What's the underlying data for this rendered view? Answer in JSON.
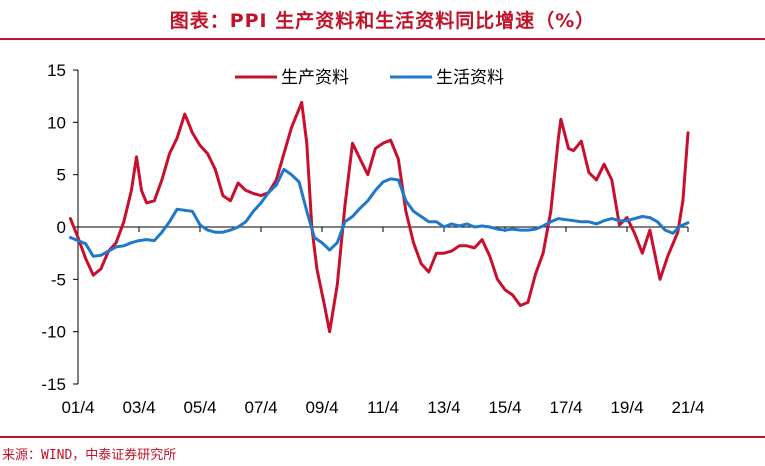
{
  "title": "图表：PPI 生产资料和生活资料同比增速（%）",
  "source": "来源：WIND，中泰证券研究所",
  "colors": {
    "accent": "#c0142a",
    "series1": "#c8102e",
    "series2": "#1f78c8"
  },
  "chart_data": {
    "type": "line",
    "title": "图表：PPI 生产资料和生活资料同比增速（%）",
    "xlabel": "",
    "ylabel": "",
    "ylim": [
      -15,
      15
    ],
    "yticks": [
      "15",
      "10",
      "5",
      "0",
      "-5",
      "-10",
      "-15"
    ],
    "xticks": [
      "01/4",
      "03/4",
      "05/4",
      "07/4",
      "09/4",
      "11/4",
      "13/4",
      "15/4",
      "17/4",
      "19/4",
      "21/4"
    ],
    "legend_position": "top",
    "grid": false,
    "series": [
      {
        "name": "生产资料",
        "points": [
          [
            "2001-01",
            0.8
          ],
          [
            "2001-04",
            -1.0
          ],
          [
            "2001-07",
            -3.0
          ],
          [
            "2001-10",
            -4.6
          ],
          [
            "2002-01",
            -4.0
          ],
          [
            "2002-04",
            -2.3
          ],
          [
            "2002-07",
            -1.5
          ],
          [
            "2002-10",
            0.5
          ],
          [
            "2003-01",
            3.5
          ],
          [
            "2003-03",
            6.7
          ],
          [
            "2003-05",
            3.5
          ],
          [
            "2003-07",
            2.3
          ],
          [
            "2003-10",
            2.5
          ],
          [
            "2004-01",
            4.5
          ],
          [
            "2004-04",
            7.0
          ],
          [
            "2004-07",
            8.5
          ],
          [
            "2004-10",
            10.8
          ],
          [
            "2005-01",
            9.0
          ],
          [
            "2005-04",
            7.8
          ],
          [
            "2005-07",
            7.0
          ],
          [
            "2005-10",
            5.5
          ],
          [
            "2006-01",
            3.0
          ],
          [
            "2006-04",
            2.5
          ],
          [
            "2006-07",
            4.2
          ],
          [
            "2006-10",
            3.5
          ],
          [
            "2007-01",
            3.2
          ],
          [
            "2007-04",
            3.0
          ],
          [
            "2007-07",
            3.3
          ],
          [
            "2007-10",
            4.5
          ],
          [
            "2008-01",
            7.0
          ],
          [
            "2008-04",
            9.5
          ],
          [
            "2008-08",
            11.9
          ],
          [
            "2008-10",
            8.0
          ],
          [
            "2008-12",
            0.0
          ],
          [
            "2009-02",
            -4.0
          ],
          [
            "2009-05",
            -7.5
          ],
          [
            "2009-07",
            -10.0
          ],
          [
            "2009-10",
            -5.5
          ],
          [
            "2010-01",
            2.0
          ],
          [
            "2010-04",
            8.0
          ],
          [
            "2010-07",
            6.5
          ],
          [
            "2010-10",
            5.0
          ],
          [
            "2011-01",
            7.5
          ],
          [
            "2011-04",
            8.0
          ],
          [
            "2011-07",
            8.3
          ],
          [
            "2011-10",
            6.5
          ],
          [
            "2012-01",
            1.5
          ],
          [
            "2012-04",
            -1.5
          ],
          [
            "2012-07",
            -3.5
          ],
          [
            "2012-10",
            -4.3
          ],
          [
            "2013-01",
            -2.5
          ],
          [
            "2013-04",
            -2.5
          ],
          [
            "2013-07",
            -2.3
          ],
          [
            "2013-10",
            -1.8
          ],
          [
            "2014-01",
            -1.8
          ],
          [
            "2014-04",
            -2.0
          ],
          [
            "2014-07",
            -1.2
          ],
          [
            "2014-10",
            -2.8
          ],
          [
            "2015-01",
            -5.0
          ],
          [
            "2015-04",
            -6.0
          ],
          [
            "2015-07",
            -6.5
          ],
          [
            "2015-10",
            -7.5
          ],
          [
            "2016-01",
            -7.2
          ],
          [
            "2016-04",
            -4.5
          ],
          [
            "2016-07",
            -2.5
          ],
          [
            "2016-10",
            1.5
          ],
          [
            "2017-01",
            8.5
          ],
          [
            "2017-02",
            10.3
          ],
          [
            "2017-05",
            7.5
          ],
          [
            "2017-07",
            7.3
          ],
          [
            "2017-10",
            8.2
          ],
          [
            "2018-01",
            5.2
          ],
          [
            "2018-04",
            4.5
          ],
          [
            "2018-07",
            6.0
          ],
          [
            "2018-10",
            4.5
          ],
          [
            "2019-01",
            0.2
          ],
          [
            "2019-04",
            0.9
          ],
          [
            "2019-07",
            -0.6
          ],
          [
            "2019-10",
            -2.5
          ],
          [
            "2020-01",
            -0.3
          ],
          [
            "2020-05",
            -5.0
          ],
          [
            "2020-08",
            -2.8
          ],
          [
            "2020-12",
            -0.5
          ],
          [
            "2021-02",
            2.5
          ],
          [
            "2021-04",
            9.0
          ]
        ]
      },
      {
        "name": "生活资料",
        "points": [
          [
            "2001-01",
            -1.0
          ],
          [
            "2001-04",
            -1.3
          ],
          [
            "2001-07",
            -1.6
          ],
          [
            "2001-10",
            -2.8
          ],
          [
            "2002-01",
            -2.7
          ],
          [
            "2002-04",
            -2.3
          ],
          [
            "2002-07",
            -1.9
          ],
          [
            "2002-10",
            -1.8
          ],
          [
            "2003-01",
            -1.5
          ],
          [
            "2003-04",
            -1.3
          ],
          [
            "2003-07",
            -1.2
          ],
          [
            "2003-10",
            -1.3
          ],
          [
            "2004-01",
            -0.5
          ],
          [
            "2004-04",
            0.5
          ],
          [
            "2004-07",
            1.7
          ],
          [
            "2004-10",
            1.6
          ],
          [
            "2005-01",
            1.5
          ],
          [
            "2005-04",
            0.2
          ],
          [
            "2005-07",
            -0.3
          ],
          [
            "2005-10",
            -0.5
          ],
          [
            "2006-01",
            -0.5
          ],
          [
            "2006-04",
            -0.3
          ],
          [
            "2006-07",
            0.0
          ],
          [
            "2006-10",
            0.5
          ],
          [
            "2007-01",
            1.5
          ],
          [
            "2007-04",
            2.3
          ],
          [
            "2007-07",
            3.3
          ],
          [
            "2007-10",
            4.0
          ],
          [
            "2008-01",
            5.5
          ],
          [
            "2008-04",
            5.0
          ],
          [
            "2008-07",
            4.3
          ],
          [
            "2008-10",
            1.5
          ],
          [
            "2009-01",
            -1.0
          ],
          [
            "2009-04",
            -1.5
          ],
          [
            "2009-07",
            -2.2
          ],
          [
            "2009-10",
            -1.5
          ],
          [
            "2010-01",
            0.5
          ],
          [
            "2010-04",
            1.0
          ],
          [
            "2010-07",
            1.8
          ],
          [
            "2010-10",
            2.5
          ],
          [
            "2011-01",
            3.5
          ],
          [
            "2011-04",
            4.3
          ],
          [
            "2011-07",
            4.6
          ],
          [
            "2011-10",
            4.5
          ],
          [
            "2012-01",
            2.5
          ],
          [
            "2012-04",
            1.5
          ],
          [
            "2012-07",
            1.0
          ],
          [
            "2012-10",
            0.5
          ],
          [
            "2013-01",
            0.5
          ],
          [
            "2013-04",
            0.0
          ],
          [
            "2013-07",
            0.3
          ],
          [
            "2013-10",
            0.1
          ],
          [
            "2014-01",
            0.3
          ],
          [
            "2014-04",
            0.0
          ],
          [
            "2014-07",
            0.1
          ],
          [
            "2014-10",
            0.0
          ],
          [
            "2015-01",
            -0.2
          ],
          [
            "2015-04",
            -0.3
          ],
          [
            "2015-07",
            -0.2
          ],
          [
            "2015-10",
            -0.3
          ],
          [
            "2016-01",
            -0.3
          ],
          [
            "2016-04",
            -0.2
          ],
          [
            "2016-07",
            0.1
          ],
          [
            "2016-10",
            0.5
          ],
          [
            "2017-01",
            0.8
          ],
          [
            "2017-04",
            0.7
          ],
          [
            "2017-07",
            0.6
          ],
          [
            "2017-10",
            0.5
          ],
          [
            "2018-01",
            0.5
          ],
          [
            "2018-04",
            0.3
          ],
          [
            "2018-07",
            0.6
          ],
          [
            "2018-10",
            0.8
          ],
          [
            "2019-01",
            0.6
          ],
          [
            "2019-04",
            0.6
          ],
          [
            "2019-07",
            0.8
          ],
          [
            "2019-10",
            1.0
          ],
          [
            "2020-01",
            0.9
          ],
          [
            "2020-04",
            0.5
          ],
          [
            "2020-07",
            -0.3
          ],
          [
            "2020-10",
            -0.6
          ],
          [
            "2021-01",
            0.1
          ],
          [
            "2021-04",
            0.4
          ]
        ]
      }
    ]
  }
}
